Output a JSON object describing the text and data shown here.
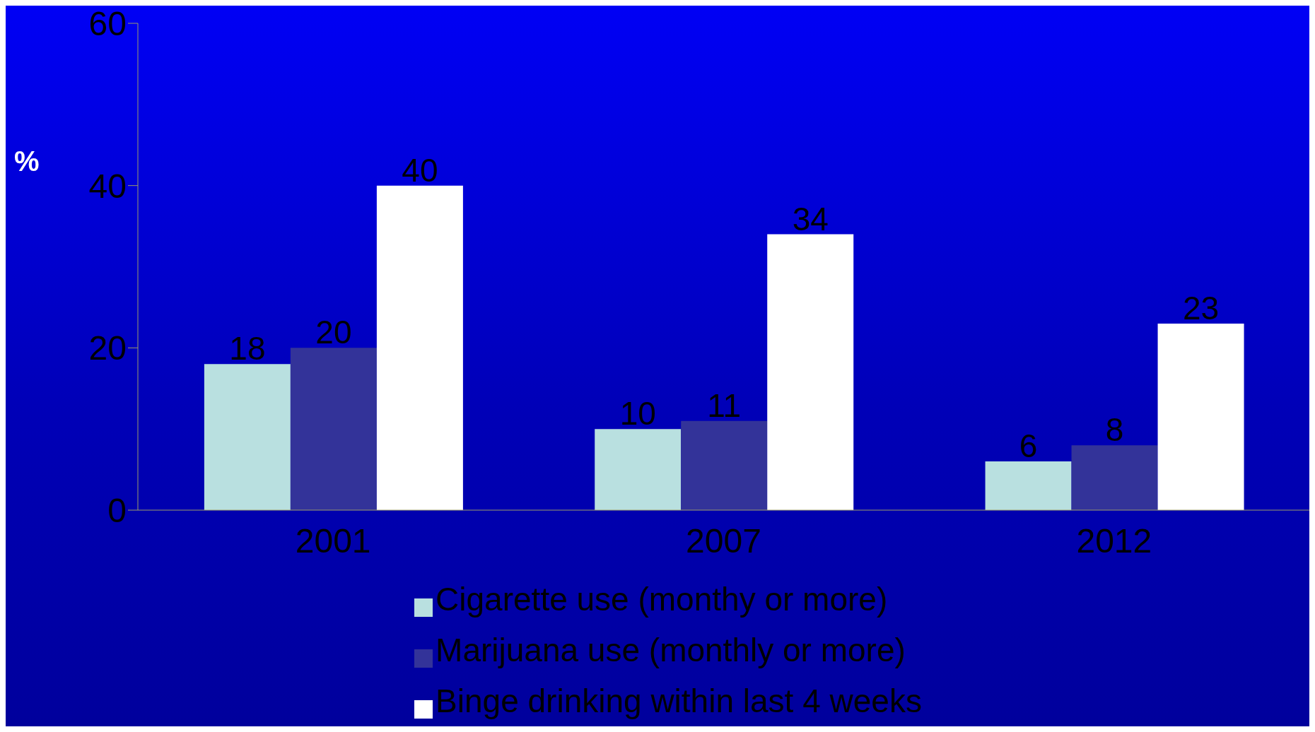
{
  "chart_data": {
    "type": "bar",
    "ylabel": "%",
    "categories": [
      "2001",
      "2007",
      "2012"
    ],
    "series": [
      {
        "name": "Cigarette use (monthy or more)",
        "color": "#b9e0e0",
        "values": [
          18,
          10,
          6
        ]
      },
      {
        "name": "Marijuana use (monthly or more)",
        "color": "#333399",
        "values": [
          20,
          11,
          8
        ]
      },
      {
        "name": "Binge drinking within last 4 weeks",
        "color": "#ffffff",
        "values": [
          40,
          34,
          23
        ]
      }
    ],
    "ylim": [
      0,
      60
    ],
    "yticks": [
      0,
      20,
      40,
      60
    ],
    "grid": false,
    "legend": "bottom",
    "data_labels": true
  }
}
